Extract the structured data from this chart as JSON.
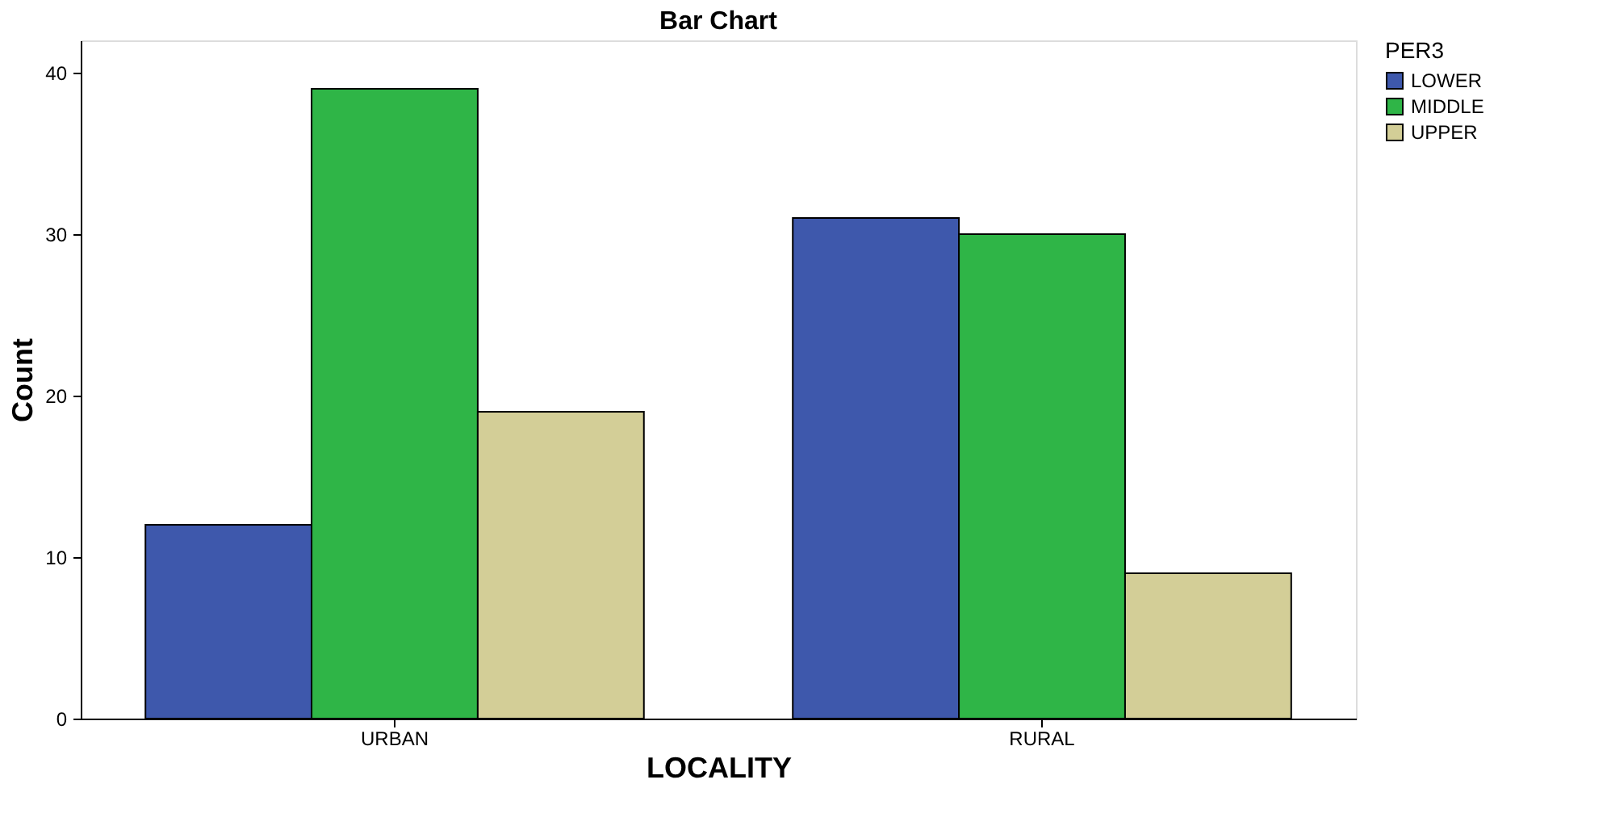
{
  "chart_data": {
    "type": "bar",
    "title": "Bar Chart",
    "xlabel": "LOCALITY",
    "ylabel": "Count",
    "legend_title": "PER3",
    "categories": [
      "URBAN",
      "RURAL"
    ],
    "series": [
      {
        "name": "LOWER",
        "color": "#3e58ac",
        "values": [
          12,
          31
        ]
      },
      {
        "name": "MIDDLE",
        "color": "#2fb547",
        "values": [
          39,
          30
        ]
      },
      {
        "name": "UPPER",
        "color": "#d3ce97",
        "values": [
          19,
          9
        ]
      }
    ],
    "ylim": [
      0,
      42
    ],
    "yticks": [
      0,
      10,
      20,
      30,
      40
    ],
    "grid": false,
    "legend": "top right"
  }
}
